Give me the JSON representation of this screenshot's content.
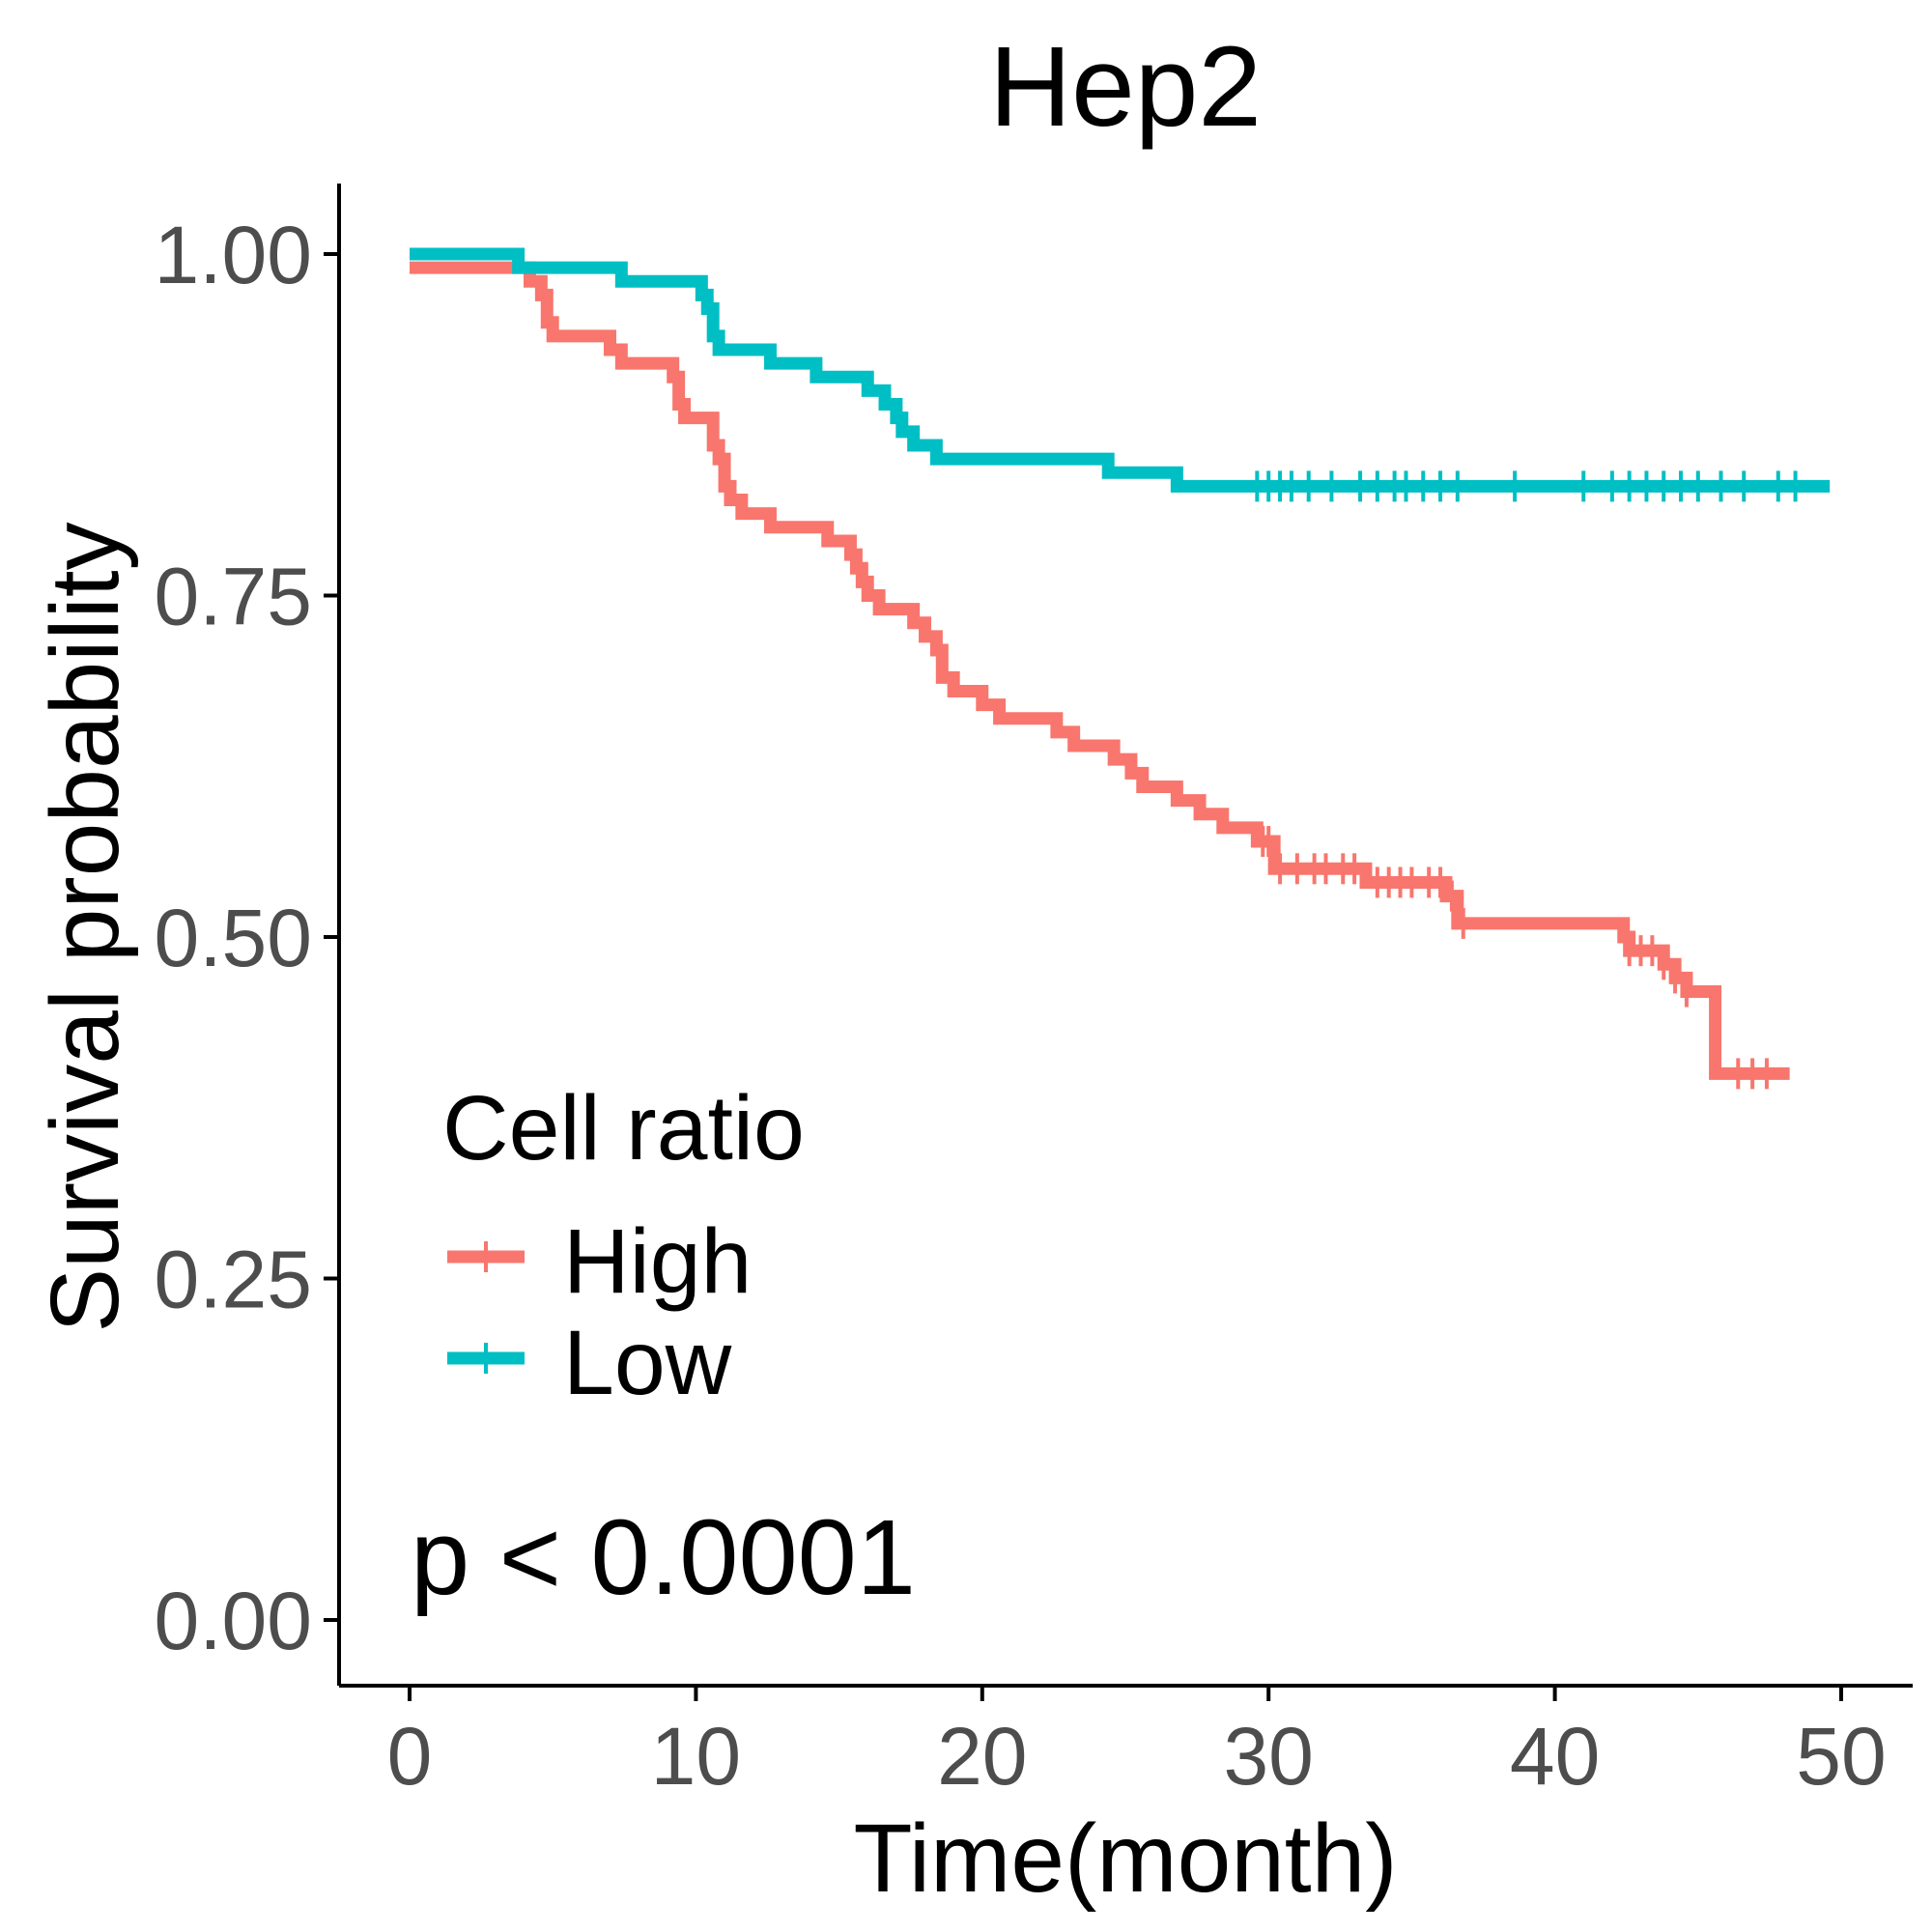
{
  "chart_data": {
    "type": "line",
    "title": "Hep2",
    "xlabel": "Time(month)",
    "ylabel": "Survival probability",
    "xlim": [
      0,
      50
    ],
    "ylim": [
      0,
      1
    ],
    "xticks": [
      "0",
      "10",
      "20",
      "30",
      "40",
      "50"
    ],
    "yticks": [
      "0.00",
      "0.25",
      "0.50",
      "0.75",
      "1.00"
    ],
    "grid": false,
    "legend": {
      "title": "Cell ratio",
      "placement": "inside-left",
      "entries": [
        "High",
        "Low"
      ]
    },
    "annotation": "p < 0.0001",
    "series": [
      {
        "name": "High",
        "color": "#F8766D",
        "steps": [
          [
            0,
            0.99
          ],
          [
            4.2,
            0.98
          ],
          [
            4.6,
            0.97
          ],
          [
            4.8,
            0.95
          ],
          [
            5,
            0.94
          ],
          [
            7,
            0.93
          ],
          [
            7.4,
            0.92
          ],
          [
            9.2,
            0.91
          ],
          [
            9.4,
            0.89
          ],
          [
            9.6,
            0.88
          ],
          [
            10.6,
            0.86
          ],
          [
            10.8,
            0.85
          ],
          [
            11,
            0.83
          ],
          [
            11.2,
            0.82
          ],
          [
            11.6,
            0.81
          ],
          [
            12.6,
            0.8
          ],
          [
            14.6,
            0.79
          ],
          [
            15.4,
            0.78
          ],
          [
            15.6,
            0.77
          ],
          [
            15.8,
            0.76
          ],
          [
            16,
            0.75
          ],
          [
            16.4,
            0.74
          ],
          [
            17.6,
            0.73
          ],
          [
            18,
            0.72
          ],
          [
            18.4,
            0.71
          ],
          [
            18.6,
            0.69
          ],
          [
            19,
            0.68
          ],
          [
            20,
            0.67
          ],
          [
            20.6,
            0.66
          ],
          [
            22.6,
            0.65
          ],
          [
            23.2,
            0.64
          ],
          [
            24.6,
            0.63
          ],
          [
            25.2,
            0.62
          ],
          [
            25.6,
            0.61
          ],
          [
            26.8,
            0.6
          ],
          [
            27.6,
            0.59
          ],
          [
            28.4,
            0.58
          ],
          [
            29.6,
            0.57
          ],
          [
            30.2,
            0.55
          ],
          [
            33.4,
            0.54
          ],
          [
            36.2,
            0.53
          ],
          [
            36.6,
            0.51
          ],
          [
            42.4,
            0.5
          ],
          [
            42.6,
            0.49
          ],
          [
            43.8,
            0.48
          ],
          [
            44.2,
            0.47
          ],
          [
            44.6,
            0.46
          ],
          [
            45.6,
            0.4
          ],
          [
            48.2,
            0.4
          ]
        ],
        "censor_times": [
          29.8,
          30,
          30.4,
          31,
          31.6,
          32,
          32.6,
          33,
          33.8,
          34.2,
          34.6,
          35,
          35.6,
          36,
          36.4,
          36.8,
          42.6,
          43,
          43.4,
          43.8,
          44.2,
          44.6,
          46.4,
          46.9,
          47.4
        ]
      },
      {
        "name": "Low",
        "color": "#00BFC4",
        "steps": [
          [
            0,
            1
          ],
          [
            3.8,
            0.99
          ],
          [
            7.4,
            0.98
          ],
          [
            10.2,
            0.97
          ],
          [
            10.4,
            0.96
          ],
          [
            10.6,
            0.94
          ],
          [
            10.8,
            0.93
          ],
          [
            12.6,
            0.92
          ],
          [
            14.2,
            0.91
          ],
          [
            16,
            0.9
          ],
          [
            16.6,
            0.89
          ],
          [
            17,
            0.88
          ],
          [
            17.2,
            0.87
          ],
          [
            17.6,
            0.86
          ],
          [
            18.4,
            0.85
          ],
          [
            24.4,
            0.84
          ],
          [
            26.8,
            0.83
          ],
          [
            49.6,
            0.83
          ]
        ],
        "censor_times": [
          29.6,
          30,
          30.4,
          30.8,
          31.4,
          32.2,
          33.2,
          33.8,
          34.4,
          34.8,
          35.4,
          36,
          36.6,
          38.6,
          41,
          42,
          42.6,
          43.2,
          43.8,
          44.4,
          45,
          45.8,
          46.6,
          47.8,
          48.4
        ]
      }
    ]
  }
}
